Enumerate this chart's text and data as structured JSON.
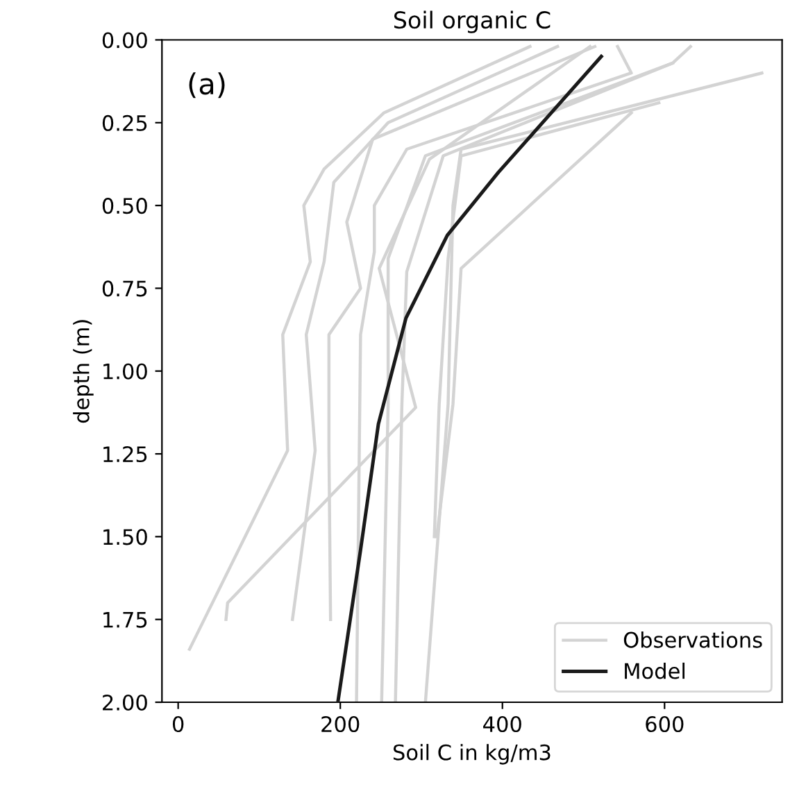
{
  "chart_data": {
    "type": "line",
    "title": "Soil organic C",
    "xlabel": "Soil C in kg/m3",
    "ylabel": "depth (m)",
    "annotations": [
      "(a)"
    ],
    "xlim": [
      -20,
      745
    ],
    "xticks": [
      0,
      200,
      400,
      600
    ],
    "ylim": [
      2.0,
      0.0
    ],
    "yticks": [
      {
        "value": 0,
        "label": "0.00"
      },
      {
        "value": 0.25,
        "label": "0.25"
      },
      {
        "value": 0.5,
        "label": "0.50"
      },
      {
        "value": 0.75,
        "label": "0.75"
      },
      {
        "value": 1.0,
        "label": "1.00"
      },
      {
        "value": 1.25,
        "label": "1.25"
      },
      {
        "value": 1.5,
        "label": "1.50"
      },
      {
        "value": 1.75,
        "label": "1.75"
      },
      {
        "value": 2.0,
        "label": "2.00"
      }
    ],
    "legend": "bottom right",
    "grid": false,
    "series": [
      {
        "name": "Observations",
        "color": "#d3d3d3",
        "x": [
          434,
          254,
          180,
          155,
          163,
          129,
          135,
          14
        ],
        "values": [
          0.02,
          0.22,
          0.39,
          0.5,
          0.67,
          0.89,
          1.24,
          1.84
        ]
      },
      {
        "color": "#d3d3d3",
        "x": [
          468,
          259,
          192,
          180,
          158,
          169,
          141
        ],
        "values": [
          0.02,
          0.25,
          0.43,
          0.67,
          0.89,
          1.24,
          1.75
        ]
      },
      {
        "color": "#d3d3d3",
        "x": [
          514,
          240,
          208,
          225,
          186,
          186,
          188
        ],
        "values": [
          0.02,
          0.3,
          0.55,
          0.75,
          0.89,
          1.24,
          1.75
        ]
      },
      {
        "color": "#d3d3d3",
        "x": [
          542,
          559,
          282,
          242,
          242,
          225,
          220
        ],
        "values": [
          0.02,
          0.1,
          0.33,
          0.5,
          0.64,
          0.89,
          2.0
        ]
      },
      {
        "color": "#d3d3d3",
        "x": [
          610,
          305,
          259,
          259,
          251
        ],
        "values": [
          0.07,
          0.35,
          0.66,
          1.1,
          2.0
        ]
      },
      {
        "color": "#d3d3d3",
        "x": [
          632,
          610,
          327,
          282,
          276,
          268
        ],
        "values": [
          0.02,
          0.07,
          0.35,
          0.7,
          1.1,
          2.0
        ]
      },
      {
        "color": "#d3d3d3",
        "x": [
          720,
          349,
          339,
          333,
          305
        ],
        "values": [
          0.1,
          0.33,
          0.5,
          1.1,
          2.0
        ]
      },
      {
        "color": "#d3d3d3",
        "x": [
          593,
          349,
          333,
          322,
          316
        ],
        "values": [
          0.19,
          0.35,
          0.66,
          1.1,
          1.5
        ]
      },
      {
        "color": "#d3d3d3",
        "x": [
          559,
          349,
          339,
          319
        ],
        "values": [
          0.22,
          0.69,
          1.1,
          1.5
        ]
      },
      {
        "color": "#d3d3d3",
        "x": [
          508,
          310,
          248,
          293,
          61,
          59
        ],
        "values": [
          0.02,
          0.36,
          0.69,
          1.11,
          1.7,
          1.75
        ]
      },
      {
        "name": "Model",
        "color": "#1a1a1a",
        "x": [
          522,
          395,
          332,
          281,
          247,
          225,
          197
        ],
        "values": [
          0.05,
          0.4,
          0.59,
          0.84,
          1.16,
          1.54,
          2.0
        ]
      }
    ]
  }
}
